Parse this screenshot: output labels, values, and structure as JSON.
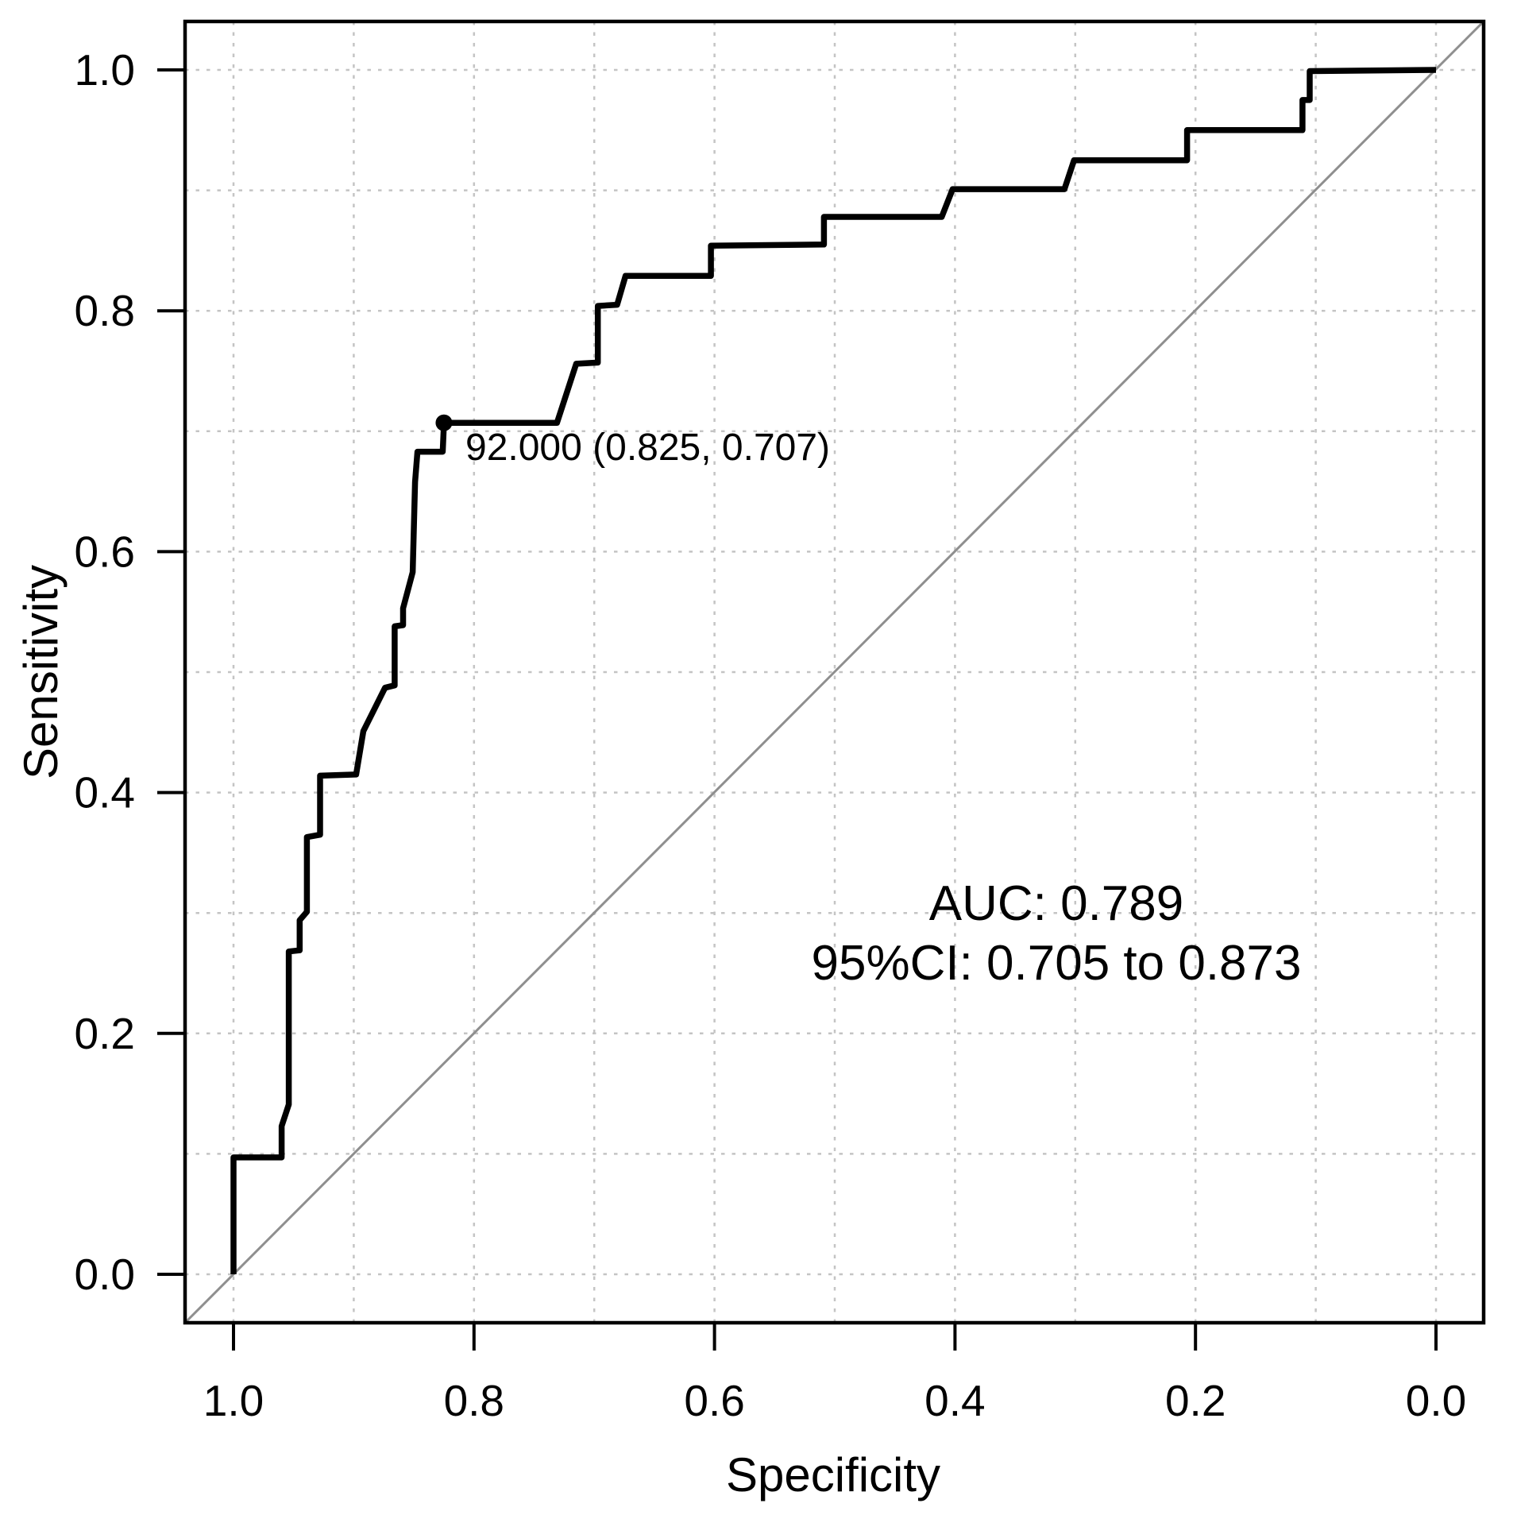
{
  "chart_data": {
    "type": "line",
    "subtype": "roc_step_curve",
    "title": "",
    "xlabel": "Specificity",
    "ylabel": "Sensitivity",
    "x_axis": {
      "label": "Specificity",
      "tick_values": [
        1.0,
        0.8,
        0.6,
        0.4,
        0.2,
        0.0
      ],
      "tick_labels": [
        "1.0",
        "0.8",
        "0.6",
        "0.4",
        "0.2",
        "0.0"
      ],
      "range": [
        1.0,
        0.0
      ],
      "reversed": true
    },
    "y_axis": {
      "label": "Sensitivity",
      "tick_values": [
        0.0,
        0.2,
        0.4,
        0.6,
        0.8,
        1.0
      ],
      "tick_labels": [
        "0.0",
        "0.2",
        "0.4",
        "0.6",
        "0.8",
        "1.0"
      ],
      "range": [
        0.0,
        1.0
      ]
    },
    "grid": {
      "on": true,
      "step": 0.1,
      "style": "dotted"
    },
    "series": [
      {
        "name": "ROC curve",
        "color": "#000000",
        "points": [
          [
            1.0,
            0.0
          ],
          [
            1.0,
            0.097
          ],
          [
            0.96,
            0.097
          ],
          [
            0.96,
            0.123
          ],
          [
            0.954,
            0.141
          ],
          [
            0.954,
            0.268
          ],
          [
            0.945,
            0.269
          ],
          [
            0.945,
            0.294
          ],
          [
            0.939,
            0.301
          ],
          [
            0.939,
            0.363
          ],
          [
            0.928,
            0.365
          ],
          [
            0.928,
            0.414
          ],
          [
            0.898,
            0.415
          ],
          [
            0.892,
            0.451
          ],
          [
            0.874,
            0.487
          ],
          [
            0.866,
            0.489
          ],
          [
            0.866,
            0.538
          ],
          [
            0.859,
            0.539
          ],
          [
            0.859,
            0.553
          ],
          [
            0.851,
            0.583
          ],
          [
            0.849,
            0.658
          ],
          [
            0.847,
            0.683
          ],
          [
            0.826,
            0.683
          ],
          [
            0.825,
            0.707
          ],
          [
            0.731,
            0.707
          ],
          [
            0.715,
            0.756
          ],
          [
            0.697,
            0.757
          ],
          [
            0.697,
            0.804
          ],
          [
            0.681,
            0.805
          ],
          [
            0.674,
            0.829
          ],
          [
            0.603,
            0.829
          ],
          [
            0.603,
            0.854
          ],
          [
            0.509,
            0.855
          ],
          [
            0.509,
            0.878
          ],
          [
            0.411,
            0.878
          ],
          [
            0.402,
            0.901
          ],
          [
            0.309,
            0.901
          ],
          [
            0.301,
            0.925
          ],
          [
            0.207,
            0.925
          ],
          [
            0.207,
            0.95
          ],
          [
            0.111,
            0.95
          ],
          [
            0.111,
            0.975
          ],
          [
            0.105,
            0.975
          ],
          [
            0.105,
            0.999
          ],
          [
            0.0,
            1.0
          ]
        ]
      },
      {
        "name": "reference diagonal",
        "color": "#8f8f8f",
        "points": [
          [
            1.0,
            0.0
          ],
          [
            0.0,
            1.0
          ]
        ]
      }
    ],
    "best_threshold": {
      "label": "92.000 (0.825, 0.707)",
      "threshold": 92.0,
      "specificity": 0.825,
      "sensitivity": 0.707
    },
    "annotations": {
      "auc_line": "AUC: 0.789",
      "ci_line": "95%CI: 0.705 to 0.873"
    },
    "auc": 0.789,
    "ci_low": 0.705,
    "ci_high": 0.873,
    "style": {
      "curve_color": "#000000",
      "reference_color": "#8f8f8f",
      "grid_color": "#c4c4c4",
      "axis_color": "#000000",
      "background": "#ffffff"
    }
  }
}
